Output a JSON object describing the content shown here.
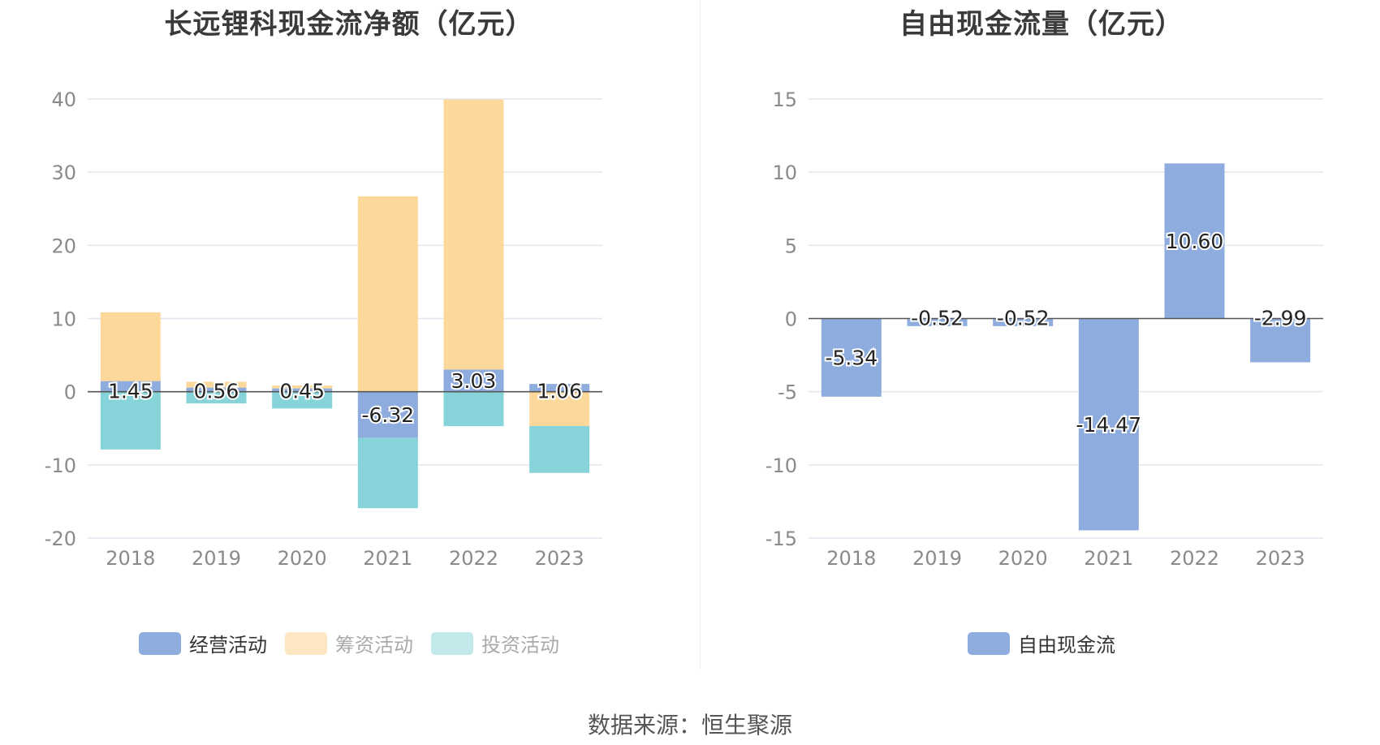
{
  "colors": {
    "operating": "#8eadde",
    "financing": "#fdd89b",
    "investing": "#86d4d9",
    "financing_legend": "#fde6c2",
    "investing_legend": "#c2e8ea",
    "free_cash_flow": "#8eadde",
    "grid": "#e3e6f0",
    "axis_text": "#8a8a8a"
  },
  "source": "数据来源：恒生聚源",
  "chart_data": [
    {
      "type": "bar",
      "stacked": true,
      "title": "长远锂科现金流净额（亿元）",
      "categories": [
        "2018",
        "2019",
        "2020",
        "2021",
        "2022",
        "2023"
      ],
      "ylim": [
        -20,
        40
      ],
      "yticks": [
        40,
        30,
        20,
        10,
        0,
        -10,
        -20
      ],
      "grid": true,
      "legend_position": "bottom",
      "series": [
        {
          "name": "经营活动",
          "color_key": "operating",
          "values": [
            1.45,
            0.56,
            0.45,
            -6.32,
            3.03,
            1.06
          ],
          "data_labels": [
            "1.45",
            "0.56",
            "0.45",
            "-6.32",
            "3.03",
            "1.06"
          ],
          "legend_active": true
        },
        {
          "name": "筹资活动",
          "color_key": "financing",
          "values": [
            9.4,
            0.8,
            0.4,
            26.7,
            36.9,
            -4.7
          ],
          "legend_active": false
        },
        {
          "name": "投资活动",
          "color_key": "investing",
          "values": [
            -7.9,
            -1.6,
            -2.3,
            -9.6,
            -4.7,
            -6.4
          ],
          "legend_active": false
        }
      ]
    },
    {
      "type": "bar",
      "title": "自由现金流量（亿元）",
      "categories": [
        "2018",
        "2019",
        "2020",
        "2021",
        "2022",
        "2023"
      ],
      "ylim": [
        -15,
        15
      ],
      "yticks": [
        15,
        10,
        5,
        0,
        -5,
        -10,
        -15
      ],
      "grid": true,
      "legend_position": "bottom",
      "series": [
        {
          "name": "自由现金流",
          "color_key": "free_cash_flow",
          "values": [
            -5.34,
            -0.52,
            -0.52,
            -14.47,
            10.6,
            -2.99
          ],
          "data_labels": [
            "-5.34",
            "-0.52",
            "-0.52",
            "-14.47",
            "10.60",
            "-2.99"
          ],
          "legend_active": true
        }
      ]
    }
  ]
}
